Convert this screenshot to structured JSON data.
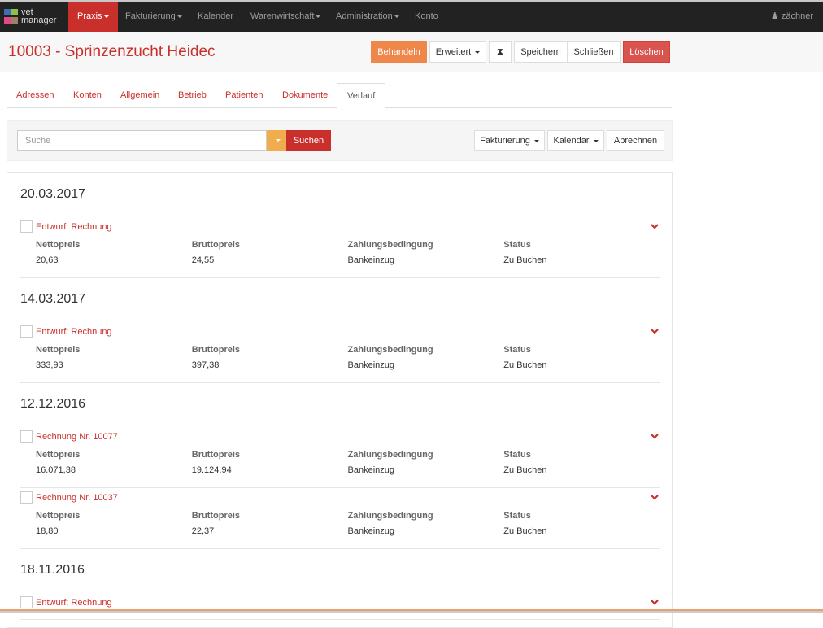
{
  "nav": {
    "brand_top": "vet",
    "brand_bottom": "manager",
    "items": [
      {
        "label": "Praxis",
        "caret": true
      },
      {
        "label": "Fakturierung",
        "caret": true
      },
      {
        "label": "Kalender",
        "caret": false
      },
      {
        "label": "Warenwirtschaft",
        "caret": true
      },
      {
        "label": "Administration",
        "caret": true
      },
      {
        "label": "Konto",
        "caret": false
      }
    ],
    "user": "zächner",
    "active_color": "#c9302c"
  },
  "header": {
    "title": "10003 - Sprinzenzucht Heidec",
    "buttons": {
      "behandeln": "Behandeln",
      "erweitert": "Erweitert",
      "hourglass_icon": "⧗",
      "speichern": "Speichern",
      "schliessen": "Schließen",
      "loeschen": "Löschen"
    }
  },
  "tabs": [
    "Adressen",
    "Konten",
    "Allgemein",
    "Betrieb",
    "Patienten",
    "Dokumente",
    "Verlauf"
  ],
  "active_tab": "Verlauf",
  "toolbar": {
    "search_placeholder": "Suche",
    "search_button": "Suchen",
    "fakturierung": "Fakturierung",
    "kalendar": "Kalendar",
    "abrechnen": "Abrechnen"
  },
  "columns": [
    "Nettopreis",
    "Bruttopreis",
    "Zahlungsbedingung",
    "Status"
  ],
  "groups": [
    {
      "date": "20.03.2017",
      "items": [
        {
          "title": "Entwurf: Rechnung",
          "values": [
            "20,63",
            "24,55",
            "Bankeinzug",
            "Zu Buchen"
          ]
        }
      ]
    },
    {
      "date": "14.03.2017",
      "items": [
        {
          "title": "Entwurf: Rechnung",
          "values": [
            "333,93",
            "397,38",
            "Bankeinzug",
            "Zu Buchen"
          ]
        }
      ]
    },
    {
      "date": "12.12.2016",
      "items": [
        {
          "title": "Rechnung Nr. 10077",
          "values": [
            "16.071,38",
            "19.124,94",
            "Bankeinzug",
            "Zu Buchen"
          ]
        },
        {
          "title": "Rechnung Nr. 10037",
          "values": [
            "18,80",
            "22,37",
            "Bankeinzug",
            "Zu Buchen"
          ]
        }
      ]
    },
    {
      "date": "18.11.2016",
      "items": [
        {
          "title": "Entwurf: Rechnung",
          "values": []
        }
      ]
    }
  ]
}
